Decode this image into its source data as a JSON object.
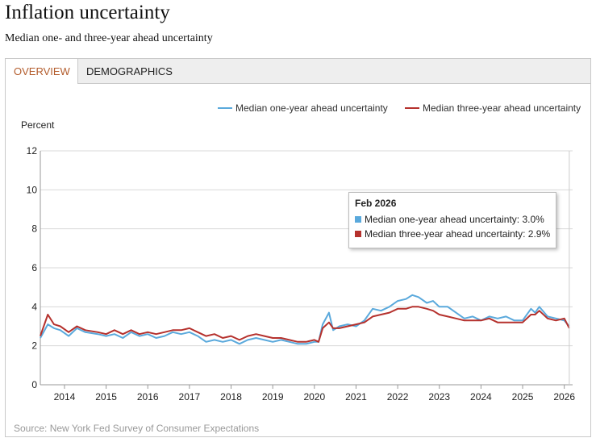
{
  "header": {
    "title": "Inflation uncertainty",
    "subtitle": "Median one- and three-year ahead uncertainty"
  },
  "tabs": [
    {
      "label": "OVERVIEW",
      "active": true
    },
    {
      "label": "DEMOGRAPHICS",
      "active": false
    }
  ],
  "source": "Source: New York Fed Survey of Consumer Expectations",
  "colors": {
    "one_year": "#5aa9dc",
    "three_year": "#b5312d",
    "grid": "#d8d8d8"
  },
  "tooltip": {
    "title": "Feb 2026",
    "rows": [
      {
        "label": "Median one-year ahead uncertainty: 3.0%",
        "color": "#5aa9dc"
      },
      {
        "label": "Median three-year ahead uncertainty: 2.9%",
        "color": "#b5312d"
      }
    ]
  },
  "chart_data": {
    "type": "line",
    "ylabel": "Percent",
    "ylim": [
      0,
      12
    ],
    "yticks": [
      0,
      2,
      4,
      6,
      8,
      10,
      12
    ],
    "xlim": [
      2013.42,
      2026.2
    ],
    "xticks": [
      2014,
      2015,
      2016,
      2017,
      2018,
      2019,
      2020,
      2021,
      2022,
      2023,
      2024,
      2025,
      2026
    ],
    "legend": "top-right",
    "series": [
      {
        "name": "Median one-year ahead uncertainty",
        "color": "#5aa9dc",
        "points": [
          [
            2013.42,
            2.4
          ],
          [
            2013.6,
            3.1
          ],
          [
            2013.75,
            2.9
          ],
          [
            2013.9,
            2.8
          ],
          [
            2014.1,
            2.5
          ],
          [
            2014.3,
            2.9
          ],
          [
            2014.5,
            2.7
          ],
          [
            2014.8,
            2.6
          ],
          [
            2015.0,
            2.5
          ],
          [
            2015.2,
            2.6
          ],
          [
            2015.4,
            2.4
          ],
          [
            2015.6,
            2.7
          ],
          [
            2015.8,
            2.5
          ],
          [
            2016.0,
            2.6
          ],
          [
            2016.2,
            2.4
          ],
          [
            2016.4,
            2.5
          ],
          [
            2016.6,
            2.7
          ],
          [
            2016.8,
            2.6
          ],
          [
            2017.0,
            2.7
          ],
          [
            2017.2,
            2.5
          ],
          [
            2017.4,
            2.2
          ],
          [
            2017.6,
            2.3
          ],
          [
            2017.8,
            2.2
          ],
          [
            2018.0,
            2.3
          ],
          [
            2018.2,
            2.1
          ],
          [
            2018.4,
            2.3
          ],
          [
            2018.6,
            2.4
          ],
          [
            2018.8,
            2.3
          ],
          [
            2019.0,
            2.2
          ],
          [
            2019.2,
            2.3
          ],
          [
            2019.4,
            2.2
          ],
          [
            2019.6,
            2.1
          ],
          [
            2019.8,
            2.1
          ],
          [
            2020.0,
            2.2
          ],
          [
            2020.1,
            2.2
          ],
          [
            2020.2,
            3.1
          ],
          [
            2020.35,
            3.7
          ],
          [
            2020.45,
            2.8
          ],
          [
            2020.6,
            3.0
          ],
          [
            2020.8,
            3.1
          ],
          [
            2021.0,
            3.0
          ],
          [
            2021.2,
            3.3
          ],
          [
            2021.4,
            3.9
          ],
          [
            2021.6,
            3.8
          ],
          [
            2021.8,
            4.0
          ],
          [
            2022.0,
            4.3
          ],
          [
            2022.2,
            4.4
          ],
          [
            2022.35,
            4.6
          ],
          [
            2022.5,
            4.5
          ],
          [
            2022.7,
            4.2
          ],
          [
            2022.85,
            4.3
          ],
          [
            2023.0,
            4.0
          ],
          [
            2023.2,
            4.0
          ],
          [
            2023.4,
            3.7
          ],
          [
            2023.6,
            3.4
          ],
          [
            2023.8,
            3.5
          ],
          [
            2024.0,
            3.3
          ],
          [
            2024.2,
            3.5
          ],
          [
            2024.4,
            3.4
          ],
          [
            2024.6,
            3.5
          ],
          [
            2024.8,
            3.3
          ],
          [
            2025.0,
            3.3
          ],
          [
            2025.2,
            3.9
          ],
          [
            2025.3,
            3.7
          ],
          [
            2025.4,
            4.0
          ],
          [
            2025.6,
            3.5
          ],
          [
            2025.8,
            3.4
          ],
          [
            2026.0,
            3.3
          ],
          [
            2026.12,
            3.0
          ]
        ]
      },
      {
        "name": "Median three-year ahead uncertainty",
        "color": "#b5312d",
        "points": [
          [
            2013.42,
            2.5
          ],
          [
            2013.6,
            3.6
          ],
          [
            2013.75,
            3.1
          ],
          [
            2013.9,
            3.0
          ],
          [
            2014.1,
            2.7
          ],
          [
            2014.3,
            3.0
          ],
          [
            2014.5,
            2.8
          ],
          [
            2014.8,
            2.7
          ],
          [
            2015.0,
            2.6
          ],
          [
            2015.2,
            2.8
          ],
          [
            2015.4,
            2.6
          ],
          [
            2015.6,
            2.8
          ],
          [
            2015.8,
            2.6
          ],
          [
            2016.0,
            2.7
          ],
          [
            2016.2,
            2.6
          ],
          [
            2016.4,
            2.7
          ],
          [
            2016.6,
            2.8
          ],
          [
            2016.8,
            2.8
          ],
          [
            2017.0,
            2.9
          ],
          [
            2017.2,
            2.7
          ],
          [
            2017.4,
            2.5
          ],
          [
            2017.6,
            2.6
          ],
          [
            2017.8,
            2.4
          ],
          [
            2018.0,
            2.5
          ],
          [
            2018.2,
            2.3
          ],
          [
            2018.4,
            2.5
          ],
          [
            2018.6,
            2.6
          ],
          [
            2018.8,
            2.5
          ],
          [
            2019.0,
            2.4
          ],
          [
            2019.2,
            2.4
          ],
          [
            2019.4,
            2.3
          ],
          [
            2019.6,
            2.2
          ],
          [
            2019.8,
            2.2
          ],
          [
            2020.0,
            2.3
          ],
          [
            2020.1,
            2.2
          ],
          [
            2020.2,
            2.9
          ],
          [
            2020.35,
            3.2
          ],
          [
            2020.45,
            2.9
          ],
          [
            2020.6,
            2.9
          ],
          [
            2020.8,
            3.0
          ],
          [
            2021.0,
            3.1
          ],
          [
            2021.2,
            3.2
          ],
          [
            2021.4,
            3.5
          ],
          [
            2021.6,
            3.6
          ],
          [
            2021.8,
            3.7
          ],
          [
            2022.0,
            3.9
          ],
          [
            2022.2,
            3.9
          ],
          [
            2022.35,
            4.0
          ],
          [
            2022.5,
            4.0
          ],
          [
            2022.7,
            3.9
          ],
          [
            2022.85,
            3.8
          ],
          [
            2023.0,
            3.6
          ],
          [
            2023.2,
            3.5
          ],
          [
            2023.4,
            3.4
          ],
          [
            2023.6,
            3.3
          ],
          [
            2023.8,
            3.3
          ],
          [
            2024.0,
            3.3
          ],
          [
            2024.2,
            3.4
          ],
          [
            2024.4,
            3.2
          ],
          [
            2024.6,
            3.2
          ],
          [
            2024.8,
            3.2
          ],
          [
            2025.0,
            3.2
          ],
          [
            2025.2,
            3.6
          ],
          [
            2025.3,
            3.6
          ],
          [
            2025.4,
            3.8
          ],
          [
            2025.6,
            3.4
          ],
          [
            2025.8,
            3.3
          ],
          [
            2026.0,
            3.4
          ],
          [
            2026.12,
            2.9
          ]
        ]
      }
    ],
    "annotation": {
      "x": 2026.12,
      "label": "Feb 2026"
    }
  }
}
